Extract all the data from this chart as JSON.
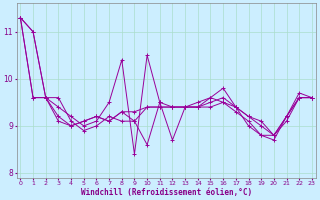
{
  "xlabel": "Windchill (Refroidissement éolien,°C)",
  "background_color": "#cceeff",
  "grid_color": "#aaddcc",
  "line_color": "#990099",
  "x_hours": [
    0,
    1,
    2,
    3,
    4,
    5,
    6,
    7,
    8,
    9,
    10,
    11,
    12,
    13,
    14,
    15,
    16,
    17,
    18,
    19,
    20,
    21,
    22,
    23
  ],
  "series1": [
    11.3,
    11.0,
    9.6,
    9.6,
    9.1,
    8.9,
    9.0,
    9.2,
    9.1,
    9.1,
    8.6,
    9.5,
    8.7,
    9.4,
    9.4,
    9.4,
    9.5,
    9.4,
    9.2,
    9.1,
    8.8,
    9.2,
    9.6,
    9.6
  ],
  "series2": [
    11.3,
    11.0,
    9.6,
    9.4,
    9.2,
    9.0,
    9.1,
    9.5,
    10.4,
    8.4,
    10.5,
    9.5,
    9.4,
    9.4,
    9.5,
    9.6,
    9.5,
    9.3,
    9.1,
    8.8,
    8.7,
    9.2,
    9.6,
    9.6
  ],
  "series3": [
    11.3,
    9.6,
    9.6,
    9.1,
    9.0,
    9.1,
    9.2,
    9.1,
    9.3,
    9.1,
    9.4,
    9.4,
    9.4,
    9.4,
    9.4,
    9.5,
    9.6,
    9.4,
    9.2,
    9.0,
    8.8,
    9.1,
    9.6,
    9.6
  ],
  "series4": [
    11.3,
    9.6,
    9.6,
    9.2,
    9.0,
    9.1,
    9.2,
    9.1,
    9.3,
    9.3,
    9.4,
    9.4,
    9.4,
    9.4,
    9.4,
    9.6,
    9.8,
    9.4,
    9.0,
    8.8,
    8.8,
    9.2,
    9.7,
    9.6
  ],
  "ylim": [
    7.9,
    11.6
  ],
  "yticks": [
    8,
    9,
    10,
    11
  ],
  "xlim": [
    -0.3,
    23.3
  ],
  "xtick_fontsize": 4.5,
  "ytick_fontsize": 5.5,
  "xlabel_fontsize": 5.5,
  "linewidth": 0.7,
  "markersize": 2.5
}
